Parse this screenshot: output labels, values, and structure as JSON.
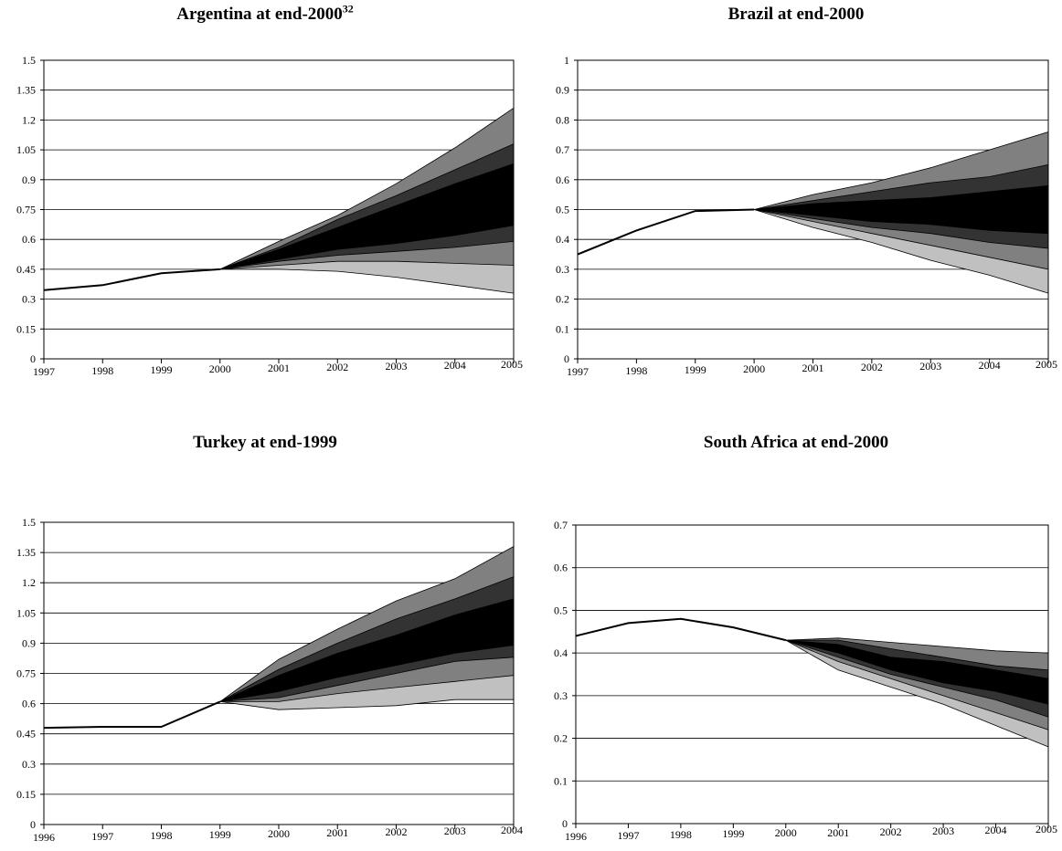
{
  "chart_data": [
    {
      "type": "area",
      "title": "Argentina at end-2000",
      "title_sup": "32",
      "x": [
        1997,
        1998,
        1999,
        2000,
        2001,
        2002,
        2003,
        2004,
        2005
      ],
      "y_ticks": [
        "0",
        "0.15",
        "0.3",
        "0.45",
        "0.6",
        "0.75",
        "0.9",
        "1.05",
        "1.2",
        "1.35",
        "1.5"
      ],
      "ylim": [
        0,
        1.5
      ],
      "grid": true,
      "history_line": [
        0.345,
        0.37,
        0.43,
        0.45
      ],
      "fan_start": 2000,
      "fan_bands": [
        [
          0.45,
          0.45,
          0.44,
          0.41,
          0.37,
          0.33
        ],
        [
          0.45,
          0.47,
          0.49,
          0.49,
          0.48,
          0.47
        ],
        [
          0.45,
          0.49,
          0.52,
          0.54,
          0.56,
          0.59
        ],
        [
          0.45,
          0.5,
          0.55,
          0.58,
          0.62,
          0.67
        ],
        [
          0.45,
          0.53,
          0.63,
          0.71,
          0.78,
          0.85
        ],
        [
          0.45,
          0.55,
          0.66,
          0.77,
          0.88,
          0.98
        ],
        [
          0.45,
          0.56,
          0.7,
          0.82,
          0.95,
          1.08
        ],
        [
          0.45,
          0.59,
          0.72,
          0.88,
          1.06,
          1.26
        ]
      ]
    },
    {
      "type": "area",
      "title": "Brazil at end-2000",
      "title_sup": "",
      "x": [
        1997,
        1998,
        1999,
        2000,
        2001,
        2002,
        2003,
        2004,
        2005
      ],
      "y_ticks": [
        "0",
        "0.1",
        "0.2",
        "0.3",
        "0.4",
        "0.5",
        "0.6",
        "0.7",
        "0.8",
        "0.9",
        "1"
      ],
      "ylim": [
        0,
        1
      ],
      "grid": true,
      "history_line": [
        0.35,
        0.43,
        0.495,
        0.5
      ],
      "fan_start": 2000,
      "fan_bands": [
        [
          0.5,
          0.44,
          0.39,
          0.33,
          0.28,
          0.22
        ],
        [
          0.5,
          0.46,
          0.42,
          0.38,
          0.34,
          0.3
        ],
        [
          0.5,
          0.47,
          0.44,
          0.42,
          0.39,
          0.37
        ],
        [
          0.5,
          0.48,
          0.46,
          0.45,
          0.43,
          0.42
        ],
        [
          0.5,
          0.5,
          0.51,
          0.51,
          0.52,
          0.52
        ],
        [
          0.5,
          0.52,
          0.53,
          0.54,
          0.56,
          0.58
        ],
        [
          0.5,
          0.53,
          0.56,
          0.59,
          0.61,
          0.65
        ],
        [
          0.5,
          0.55,
          0.59,
          0.64,
          0.7,
          0.76
        ]
      ]
    },
    {
      "type": "area",
      "title": "Turkey at end-1999",
      "title_sup": "",
      "x": [
        1996,
        1997,
        1998,
        1999,
        2000,
        2001,
        2002,
        2003,
        2004
      ],
      "y_ticks": [
        "0",
        "0.15",
        "0.3",
        "0.45",
        "0.6",
        "0.75",
        "0.9",
        "1.05",
        "1.2",
        "1.35",
        "1.5"
      ],
      "ylim": [
        0,
        1.5
      ],
      "grid": true,
      "history_line": [
        0.48,
        0.485,
        0.485,
        0.61
      ],
      "fan_start": 1999,
      "fan_bands": [
        [
          0.61,
          0.57,
          0.58,
          0.59,
          0.62,
          0.62
        ],
        [
          0.61,
          0.61,
          0.65,
          0.68,
          0.71,
          0.74
        ],
        [
          0.61,
          0.63,
          0.69,
          0.75,
          0.81,
          0.83
        ],
        [
          0.61,
          0.66,
          0.73,
          0.79,
          0.85,
          0.89
        ],
        [
          0.61,
          0.71,
          0.8,
          0.89,
          0.97,
          1.05
        ],
        [
          0.61,
          0.74,
          0.85,
          0.94,
          1.04,
          1.12
        ],
        [
          0.61,
          0.77,
          0.9,
          1.02,
          1.12,
          1.23
        ],
        [
          0.61,
          0.82,
          0.97,
          1.11,
          1.22,
          1.38
        ]
      ]
    },
    {
      "type": "area",
      "title": "South Africa at end-2000",
      "title_sup": "",
      "x": [
        1996,
        1997,
        1998,
        1999,
        2000,
        2001,
        2002,
        2003,
        2004,
        2005
      ],
      "y_ticks": [
        "0",
        "0.1",
        "0.2",
        "0.3",
        "0.4",
        "0.5",
        "0.6",
        "0.7"
      ],
      "ylim": [
        0,
        0.7
      ],
      "grid": true,
      "history_line": [
        0.44,
        0.47,
        0.48,
        0.46,
        0.43
      ],
      "fan_start": 2000,
      "fan_bands": [
        [
          0.43,
          0.36,
          0.32,
          0.28,
          0.23,
          0.18
        ],
        [
          0.43,
          0.38,
          0.34,
          0.3,
          0.26,
          0.22
        ],
        [
          0.43,
          0.39,
          0.35,
          0.32,
          0.29,
          0.25
        ],
        [
          0.43,
          0.4,
          0.36,
          0.33,
          0.31,
          0.28
        ],
        [
          0.43,
          0.41,
          0.38,
          0.36,
          0.34,
          0.31
        ],
        [
          0.43,
          0.42,
          0.39,
          0.38,
          0.36,
          0.34
        ],
        [
          0.43,
          0.43,
          0.41,
          0.39,
          0.37,
          0.36
        ],
        [
          0.43,
          0.435,
          0.425,
          0.415,
          0.405,
          0.4
        ]
      ]
    }
  ],
  "band_fills": [
    "#c0c0c0",
    "#808080",
    "#333333",
    "#000000",
    "#000000",
    "#333333",
    "#808080"
  ]
}
